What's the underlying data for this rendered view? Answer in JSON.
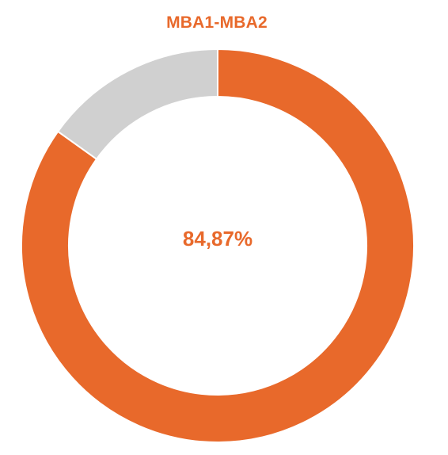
{
  "chart_data": {
    "type": "pie",
    "variant": "donut",
    "title": "MBA1-MBA2",
    "center_label": "84,87%",
    "slices": [
      {
        "value": 84.87,
        "color": "#E8692B"
      },
      {
        "value": 15.13,
        "color": "#D0D0D0"
      }
    ],
    "start_angle_deg": 0,
    "direction": "clockwise",
    "legend": "none"
  }
}
